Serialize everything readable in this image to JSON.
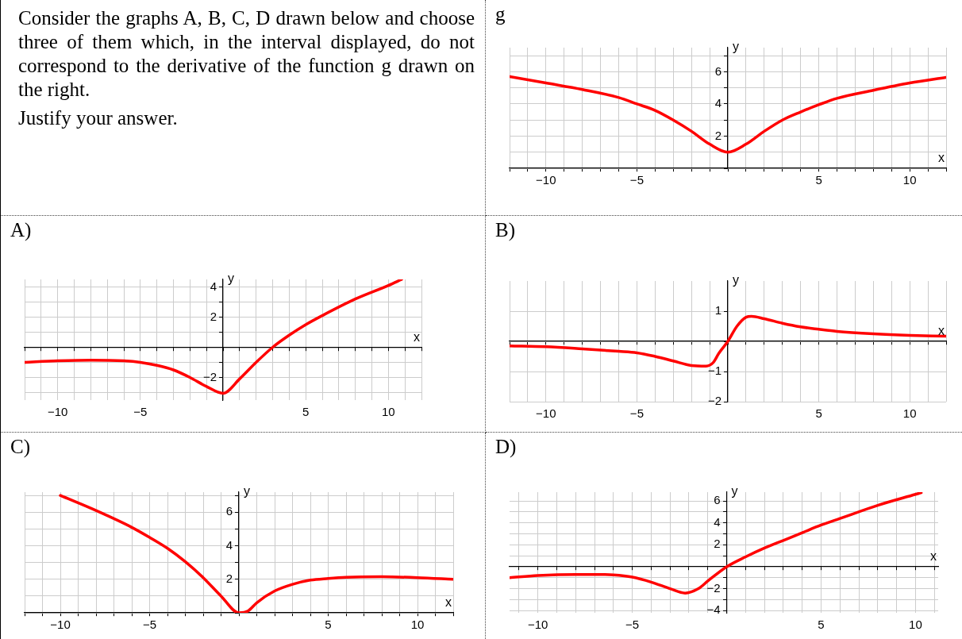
{
  "chart_data": [
    {
      "type": "other",
      "annotations": [
        "Consider the graphs A, B, C, D drawn below and choose three of them which, in the interval displayed, do not correspond to the derivative of the function g drawn on the right.",
        "Justify your answer."
      ]
    },
    {
      "type": "line",
      "title": "g",
      "xlabel": "x",
      "ylabel": "y",
      "xlim": [
        -12,
        12
      ],
      "ylim": [
        0,
        7.5
      ],
      "xticks": [
        {
          "value": -12,
          "label": null
        },
        {
          "value": -11,
          "label": null
        },
        -10,
        {
          "value": -9,
          "label": null
        },
        {
          "value": -8,
          "label": null
        },
        {
          "value": -7,
          "label": null
        },
        {
          "value": -6,
          "label": null
        },
        -5,
        {
          "value": -4,
          "label": null
        },
        {
          "value": -3,
          "label": null
        },
        {
          "value": -2,
          "label": null
        },
        {
          "value": -1,
          "label": null
        },
        {
          "value": 0,
          "label": null
        },
        {
          "value": 1,
          "label": null
        },
        {
          "value": 2,
          "label": null
        },
        {
          "value": 3,
          "label": null
        },
        {
          "value": 4,
          "label": null
        },
        5,
        {
          "value": 6,
          "label": null
        },
        {
          "value": 7,
          "label": null
        },
        {
          "value": 8,
          "label": null
        },
        {
          "value": 9,
          "label": null
        },
        10,
        {
          "value": 11,
          "label": null
        },
        {
          "value": 12,
          "label": null
        }
      ],
      "yticks": [
        {
          "value": 0,
          "label": null
        },
        {
          "value": 1,
          "label": null
        },
        2,
        {
          "value": 3,
          "label": null
        },
        4,
        {
          "value": 5,
          "label": null
        },
        6,
        {
          "value": 7,
          "label": null
        }
      ],
      "grid": true,
      "marker": "none",
      "series": [
        {
          "color": "#ff0000",
          "x": [
            -12,
            -10,
            -8,
            -6,
            -5,
            -4,
            -3,
            -2,
            -1,
            0,
            1,
            2,
            3,
            4,
            5,
            6,
            8,
            10,
            12
          ],
          "values": [
            5.7,
            5.3,
            4.9,
            4.4,
            4.0,
            3.6,
            3.0,
            2.3,
            1.5,
            1.0,
            1.5,
            2.3,
            3.0,
            3.5,
            3.95,
            4.35,
            4.85,
            5.3,
            5.65
          ]
        }
      ]
    },
    {
      "type": "line",
      "title": "A)",
      "xlabel": "x",
      "ylabel": "y",
      "xlim": [
        -12,
        12
      ],
      "ylim": [
        -3.5,
        4.5
      ],
      "xticks": [
        {
          "value": -12,
          "label": null
        },
        {
          "value": -11,
          "label": null
        },
        -10,
        {
          "value": -9,
          "label": null
        },
        {
          "value": -8,
          "label": null
        },
        {
          "value": -7,
          "label": null
        },
        {
          "value": -6,
          "label": null
        },
        -5,
        {
          "value": -4,
          "label": null
        },
        {
          "value": -3,
          "label": null
        },
        {
          "value": -2,
          "label": null
        },
        {
          "value": -1,
          "label": null
        },
        {
          "value": 0,
          "label": null
        },
        {
          "value": 1,
          "label": null
        },
        {
          "value": 2,
          "label": null
        },
        {
          "value": 3,
          "label": null
        },
        {
          "value": 4,
          "label": null
        },
        5,
        {
          "value": 6,
          "label": null
        },
        {
          "value": 7,
          "label": null
        },
        {
          "value": 8,
          "label": null
        },
        {
          "value": 9,
          "label": null
        },
        10,
        {
          "value": 11,
          "label": null
        },
        {
          "value": 12,
          "label": null
        }
      ],
      "yticks": [
        {
          "value": -3,
          "label": null
        },
        -2,
        {
          "value": -1,
          "label": null
        },
        {
          "value": 0,
          "label": null
        },
        {
          "value": 1,
          "label": null
        },
        2,
        {
          "value": 3,
          "label": null
        },
        4
      ],
      "grid": true,
      "marker": "none",
      "series": [
        {
          "color": "#ff0000",
          "x": [
            -12,
            -10,
            -8,
            -6,
            -5,
            -4,
            -3,
            -2,
            -1,
            0,
            1,
            2,
            3,
            4,
            5,
            6,
            8,
            10,
            10.8
          ],
          "values": [
            -1.0,
            -0.9,
            -0.85,
            -0.9,
            -1.0,
            -1.2,
            -1.5,
            -2.0,
            -2.6,
            -3.05,
            -2.1,
            -1.0,
            0,
            0.8,
            1.5,
            2.1,
            3.2,
            4.1,
            4.5
          ]
        }
      ]
    },
    {
      "type": "line",
      "title": "B)",
      "xlabel": "x",
      "ylabel": "y",
      "xlim": [
        -12,
        12
      ],
      "ylim": [
        -2,
        2
      ],
      "xticks": [
        {
          "value": -12,
          "label": null
        },
        {
          "value": -11,
          "label": null
        },
        -10,
        {
          "value": -9,
          "label": null
        },
        {
          "value": -8,
          "label": null
        },
        {
          "value": -7,
          "label": null
        },
        {
          "value": -6,
          "label": null
        },
        -5,
        {
          "value": -4,
          "label": null
        },
        {
          "value": -3,
          "label": null
        },
        {
          "value": -2,
          "label": null
        },
        {
          "value": -1,
          "label": null
        },
        {
          "value": 0,
          "label": null
        },
        {
          "value": 1,
          "label": null
        },
        {
          "value": 2,
          "label": null
        },
        {
          "value": 3,
          "label": null
        },
        {
          "value": 4,
          "label": null
        },
        5,
        {
          "value": 6,
          "label": null
        },
        {
          "value": 7,
          "label": null
        },
        {
          "value": 8,
          "label": null
        },
        {
          "value": 9,
          "label": null
        },
        10,
        {
          "value": 11,
          "label": null
        },
        {
          "value": 12,
          "label": null
        }
      ],
      "yticks": [
        -2,
        -1,
        {
          "value": 0,
          "label": null
        },
        1
      ],
      "grid": true,
      "marker": "none",
      "series": [
        {
          "color": "#ff0000",
          "x": [
            -12,
            -10,
            -8,
            -6,
            -5,
            -4,
            -3,
            -2,
            -1.2,
            -0.8,
            -0.5,
            0,
            0.5,
            1,
            1.3,
            2,
            3,
            4,
            5,
            6,
            8,
            10,
            12
          ],
          "values": [
            -0.15,
            -0.18,
            -0.25,
            -0.33,
            -0.38,
            -0.5,
            -0.65,
            -0.8,
            -0.82,
            -0.7,
            -0.4,
            0,
            0.5,
            0.8,
            0.83,
            0.75,
            0.6,
            0.48,
            0.4,
            0.33,
            0.25,
            0.2,
            0.17
          ]
        }
      ]
    },
    {
      "type": "line",
      "title": "C)",
      "xlabel": "x",
      "ylabel": "y",
      "xlim": [
        -12,
        12
      ],
      "ylim": [
        0,
        7.2
      ],
      "xticks": [
        {
          "value": -12,
          "label": null
        },
        {
          "value": -11,
          "label": null
        },
        -10,
        {
          "value": -9,
          "label": null
        },
        {
          "value": -8,
          "label": null
        },
        {
          "value": -7,
          "label": null
        },
        {
          "value": -6,
          "label": null
        },
        -5,
        {
          "value": -4,
          "label": null
        },
        {
          "value": -3,
          "label": null
        },
        {
          "value": -2,
          "label": null
        },
        {
          "value": -1,
          "label": null
        },
        {
          "value": 0,
          "label": null
        },
        {
          "value": 1,
          "label": null
        },
        {
          "value": 2,
          "label": null
        },
        {
          "value": 3,
          "label": null
        },
        {
          "value": 4,
          "label": null
        },
        5,
        {
          "value": 6,
          "label": null
        },
        {
          "value": 7,
          "label": null
        },
        {
          "value": 8,
          "label": null
        },
        {
          "value": 9,
          "label": null
        },
        10,
        {
          "value": 11,
          "label": null
        },
        {
          "value": 12,
          "label": null
        }
      ],
      "yticks": [
        {
          "value": 0,
          "label": null
        },
        {
          "value": 1,
          "label": null
        },
        2,
        {
          "value": 3,
          "label": null
        },
        4,
        {
          "value": 5,
          "label": null
        },
        6,
        {
          "value": 7,
          "label": null
        }
      ],
      "grid": true,
      "marker": "none",
      "series": [
        {
          "color": "#ff0000",
          "x": [
            -10,
            -8,
            -6,
            -5,
            -4,
            -3,
            -2,
            -1,
            0,
            0.5,
            1,
            2,
            3,
            4,
            5,
            6,
            8,
            10,
            12
          ],
          "values": [
            7.0,
            6.1,
            5.1,
            4.5,
            3.85,
            3.05,
            2.1,
            1.0,
            0,
            0.1,
            0.6,
            1.3,
            1.7,
            1.95,
            2.05,
            2.12,
            2.15,
            2.1,
            2.0
          ]
        }
      ]
    },
    {
      "type": "line",
      "title": "D)",
      "xlabel": "x",
      "ylabel": "y",
      "xlim": [
        -11.5,
        11.2
      ],
      "ylim": [
        -4.2,
        6.8
      ],
      "xticks": [
        {
          "value": -11,
          "label": null
        },
        -10,
        {
          "value": -9,
          "label": null
        },
        {
          "value": -8,
          "label": null
        },
        {
          "value": -7,
          "label": null
        },
        {
          "value": -6,
          "label": null
        },
        -5,
        {
          "value": -4,
          "label": null
        },
        {
          "value": -3,
          "label": null
        },
        {
          "value": -2,
          "label": null
        },
        {
          "value": -1,
          "label": null
        },
        {
          "value": 0,
          "label": null
        },
        {
          "value": 1,
          "label": null
        },
        {
          "value": 2,
          "label": null
        },
        {
          "value": 3,
          "label": null
        },
        {
          "value": 4,
          "label": null
        },
        5,
        {
          "value": 6,
          "label": null
        },
        {
          "value": 7,
          "label": null
        },
        {
          "value": 8,
          "label": null
        },
        {
          "value": 9,
          "label": null
        },
        10,
        {
          "value": 11,
          "label": null
        }
      ],
      "yticks": [
        -4,
        {
          "value": -3,
          "label": null
        },
        -2,
        {
          "value": -1,
          "label": null
        },
        {
          "value": 0,
          "label": null
        },
        {
          "value": 1,
          "label": null
        },
        2,
        {
          "value": 3,
          "label": null
        },
        4,
        {
          "value": 5,
          "label": null
        },
        6
      ],
      "grid": true,
      "marker": "none",
      "series": [
        {
          "color": "#ff0000",
          "x": [
            -11.5,
            -10,
            -8,
            -7,
            -6,
            -5,
            -4,
            -3,
            -2.2,
            -1.5,
            -1,
            0,
            1,
            2,
            3,
            4,
            5,
            6,
            8,
            10,
            10.3
          ],
          "values": [
            -1.0,
            -0.8,
            -0.7,
            -0.7,
            -0.75,
            -0.95,
            -1.4,
            -2.0,
            -2.4,
            -2.0,
            -1.3,
            0,
            0.9,
            1.7,
            2.4,
            3.1,
            3.8,
            4.4,
            5.6,
            6.6,
            6.75
          ]
        }
      ]
    }
  ]
}
